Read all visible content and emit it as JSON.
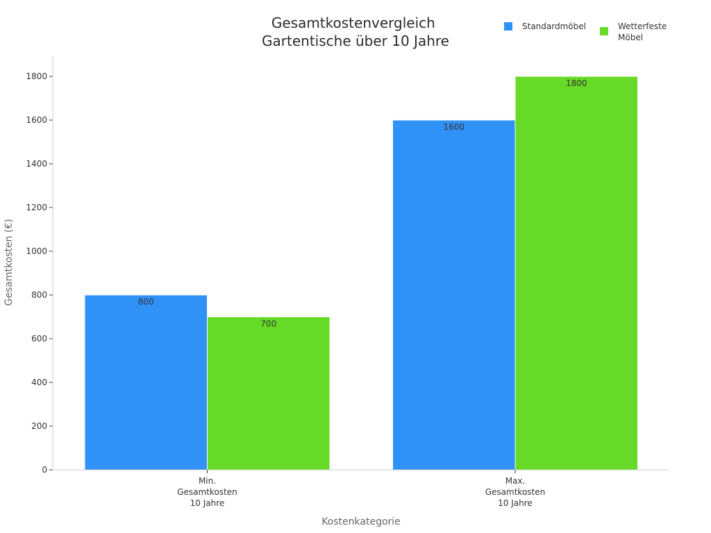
{
  "chart_data": {
    "type": "bar",
    "title": [
      "Gesamtkostenvergleich",
      "Gartentische über 10 Jahre"
    ],
    "xlabel": "Kostenkategorie",
    "ylabel": "Gesamtkosten (€)",
    "categories": [
      [
        "Min.",
        "Gesamtkosten",
        "10 Jahre"
      ],
      [
        "Max.",
        "Gesamtkosten",
        "10 Jahre"
      ]
    ],
    "series": [
      {
        "name": [
          "Standardmöbel"
        ],
        "color": "#3091f7",
        "values": [
          800,
          1600
        ]
      },
      {
        "name": [
          "Wetterfeste",
          "Möbel"
        ],
        "color": "#66da26",
        "values": [
          700,
          1800
        ]
      }
    ],
    "ylim": [
      0,
      1900
    ],
    "yticks": [
      0,
      200,
      400,
      600,
      800,
      1000,
      1200,
      1400,
      1600,
      1800
    ],
    "grid": false,
    "legend_position": "top-right",
    "data_labels": true
  }
}
